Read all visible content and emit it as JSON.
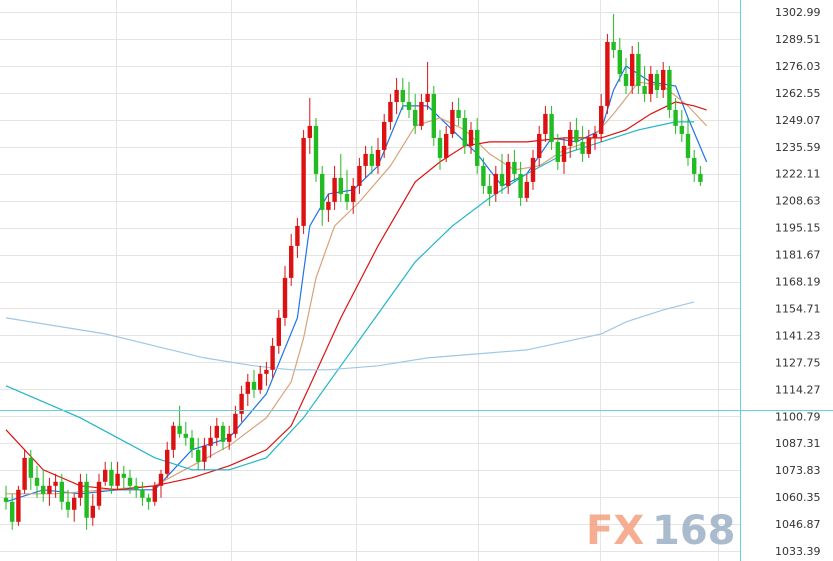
{
  "chart_data": {
    "type": "candlestick",
    "grid": true,
    "y_axis_position": "right",
    "ylim": [
      1033.39,
      1302.99
    ],
    "y_ticks": [
      "1302.99",
      "1289.51",
      "1276.03",
      "1262.55",
      "1249.07",
      "1235.59",
      "1222.11",
      "1208.63",
      "1195.15",
      "1181.67",
      "1168.19",
      "1154.71",
      "1141.23",
      "1127.75",
      "1114.27",
      "1100.79",
      "1087.31",
      "1073.83",
      "1060.35",
      "1046.87",
      "1033.39"
    ],
    "highlighted_level": 1104.0,
    "up_color": "#dd1111",
    "down_color": "#22bb22",
    "candles": [
      [
        1060,
        1066,
        1054,
        1058
      ],
      [
        1058,
        1062,
        1044,
        1048
      ],
      [
        1048,
        1066,
        1046,
        1064
      ],
      [
        1064,
        1084,
        1062,
        1080
      ],
      [
        1080,
        1084,
        1064,
        1070
      ],
      [
        1070,
        1076,
        1060,
        1066
      ],
      [
        1066,
        1074,
        1058,
        1062
      ],
      [
        1062,
        1070,
        1056,
        1066
      ],
      [
        1066,
        1072,
        1060,
        1068
      ],
      [
        1068,
        1072,
        1054,
        1058
      ],
      [
        1058,
        1064,
        1050,
        1054
      ],
      [
        1054,
        1062,
        1048,
        1060
      ],
      [
        1060,
        1072,
        1056,
        1068
      ],
      [
        1068,
        1072,
        1044,
        1050
      ],
      [
        1050,
        1062,
        1046,
        1056
      ],
      [
        1056,
        1072,
        1054,
        1068
      ],
      [
        1068,
        1078,
        1066,
        1074
      ],
      [
        1074,
        1078,
        1062,
        1066
      ],
      [
        1066,
        1078,
        1064,
        1072
      ],
      [
        1072,
        1076,
        1064,
        1070
      ],
      [
        1070,
        1074,
        1062,
        1066
      ],
      [
        1066,
        1070,
        1060,
        1064
      ],
      [
        1064,
        1068,
        1056,
        1060
      ],
      [
        1060,
        1062,
        1054,
        1058
      ],
      [
        1058,
        1068,
        1056,
        1066
      ],
      [
        1066,
        1074,
        1060,
        1072
      ],
      [
        1072,
        1088,
        1070,
        1084
      ],
      [
        1084,
        1098,
        1080,
        1096
      ],
      [
        1096,
        1106,
        1090,
        1092
      ],
      [
        1092,
        1098,
        1086,
        1090
      ],
      [
        1090,
        1094,
        1080,
        1084
      ],
      [
        1084,
        1090,
        1074,
        1078
      ],
      [
        1078,
        1090,
        1074,
        1086
      ],
      [
        1086,
        1096,
        1080,
        1090
      ],
      [
        1090,
        1100,
        1086,
        1096
      ],
      [
        1096,
        1098,
        1084,
        1088
      ],
      [
        1088,
        1096,
        1084,
        1092
      ],
      [
        1092,
        1106,
        1090,
        1102
      ],
      [
        1102,
        1116,
        1098,
        1112
      ],
      [
        1112,
        1122,
        1106,
        1118
      ],
      [
        1118,
        1124,
        1110,
        1114
      ],
      [
        1114,
        1126,
        1112,
        1122
      ],
      [
        1122,
        1128,
        1116,
        1124
      ],
      [
        1124,
        1140,
        1120,
        1136
      ],
      [
        1136,
        1154,
        1132,
        1150
      ],
      [
        1150,
        1176,
        1146,
        1170
      ],
      [
        1170,
        1192,
        1166,
        1186
      ],
      [
        1186,
        1200,
        1180,
        1196
      ],
      [
        1196,
        1244,
        1192,
        1240
      ],
      [
        1240,
        1260,
        1232,
        1246
      ],
      [
        1246,
        1250,
        1218,
        1222
      ],
      [
        1222,
        1226,
        1196,
        1204
      ],
      [
        1204,
        1212,
        1198,
        1208
      ],
      [
        1208,
        1226,
        1204,
        1220
      ],
      [
        1220,
        1232,
        1208,
        1212
      ],
      [
        1212,
        1224,
        1204,
        1208
      ],
      [
        1208,
        1220,
        1202,
        1216
      ],
      [
        1216,
        1230,
        1212,
        1226
      ],
      [
        1226,
        1236,
        1220,
        1232
      ],
      [
        1232,
        1236,
        1222,
        1226
      ],
      [
        1226,
        1240,
        1222,
        1234
      ],
      [
        1234,
        1252,
        1230,
        1248
      ],
      [
        1248,
        1262,
        1244,
        1258
      ],
      [
        1258,
        1270,
        1252,
        1264
      ],
      [
        1264,
        1270,
        1254,
        1258
      ],
      [
        1258,
        1268,
        1250,
        1254
      ],
      [
        1254,
        1262,
        1242,
        1246
      ],
      [
        1246,
        1262,
        1244,
        1258
      ],
      [
        1258,
        1278,
        1254,
        1262
      ],
      [
        1262,
        1266,
        1236,
        1240
      ],
      [
        1240,
        1244,
        1224,
        1230
      ],
      [
        1230,
        1246,
        1228,
        1242
      ],
      [
        1242,
        1258,
        1240,
        1254
      ],
      [
        1254,
        1260,
        1246,
        1250
      ],
      [
        1250,
        1254,
        1232,
        1236
      ],
      [
        1236,
        1248,
        1232,
        1244
      ],
      [
        1244,
        1250,
        1222,
        1226
      ],
      [
        1226,
        1230,
        1212,
        1216
      ],
      [
        1216,
        1222,
        1206,
        1212
      ],
      [
        1212,
        1226,
        1208,
        1222
      ],
      [
        1222,
        1232,
        1212,
        1216
      ],
      [
        1216,
        1232,
        1212,
        1228
      ],
      [
        1228,
        1234,
        1218,
        1222
      ],
      [
        1222,
        1228,
        1206,
        1210
      ],
      [
        1210,
        1222,
        1208,
        1218
      ],
      [
        1218,
        1234,
        1214,
        1230
      ],
      [
        1230,
        1246,
        1226,
        1242
      ],
      [
        1242,
        1256,
        1238,
        1252
      ],
      [
        1252,
        1256,
        1234,
        1238
      ],
      [
        1238,
        1242,
        1224,
        1228
      ],
      [
        1228,
        1240,
        1222,
        1236
      ],
      [
        1236,
        1248,
        1230,
        1244
      ],
      [
        1244,
        1250,
        1234,
        1238
      ],
      [
        1238,
        1246,
        1228,
        1232
      ],
      [
        1232,
        1244,
        1230,
        1240
      ],
      [
        1240,
        1246,
        1234,
        1242
      ],
      [
        1242,
        1262,
        1238,
        1256
      ],
      [
        1256,
        1292,
        1252,
        1288
      ],
      [
        1288,
        1302,
        1280,
        1284
      ],
      [
        1284,
        1290,
        1268,
        1272
      ],
      [
        1272,
        1280,
        1262,
        1266
      ],
      [
        1266,
        1286,
        1262,
        1282
      ],
      [
        1282,
        1288,
        1262,
        1266
      ],
      [
        1266,
        1276,
        1258,
        1262
      ],
      [
        1262,
        1276,
        1258,
        1272
      ],
      [
        1272,
        1274,
        1260,
        1264
      ],
      [
        1264,
        1278,
        1260,
        1274
      ],
      [
        1274,
        1276,
        1250,
        1254
      ],
      [
        1254,
        1260,
        1242,
        1246
      ],
      [
        1246,
        1254,
        1238,
        1242
      ],
      [
        1242,
        1250,
        1226,
        1230
      ],
      [
        1230,
        1234,
        1218,
        1222
      ],
      [
        1222,
        1226,
        1216,
        1218
      ]
    ],
    "moving_averages": [
      {
        "color": "#1e73e8",
        "values": [
          [
            0,
            1058
          ],
          [
            6,
            1064
          ],
          [
            12,
            1062
          ],
          [
            18,
            1064
          ],
          [
            24,
            1064
          ],
          [
            30,
            1084
          ],
          [
            36,
            1090
          ],
          [
            42,
            1112
          ],
          [
            47,
            1150
          ],
          [
            49,
            1196
          ],
          [
            52,
            1212
          ],
          [
            56,
            1214
          ],
          [
            60,
            1226
          ],
          [
            64,
            1256
          ],
          [
            68,
            1256
          ],
          [
            72,
            1244
          ],
          [
            76,
            1232
          ],
          [
            80,
            1216
          ],
          [
            84,
            1222
          ],
          [
            88,
            1240
          ],
          [
            92,
            1238
          ],
          [
            96,
            1244
          ],
          [
            98,
            1264
          ],
          [
            100,
            1276
          ],
          [
            104,
            1268
          ],
          [
            108,
            1266
          ],
          [
            110,
            1250
          ],
          [
            113,
            1228
          ]
        ]
      },
      {
        "color": "#d8a27a",
        "values": [
          [
            0,
            1062
          ],
          [
            8,
            1062
          ],
          [
            16,
            1064
          ],
          [
            24,
            1066
          ],
          [
            30,
            1076
          ],
          [
            36,
            1086
          ],
          [
            42,
            1100
          ],
          [
            46,
            1118
          ],
          [
            48,
            1140
          ],
          [
            50,
            1170
          ],
          [
            53,
            1196
          ],
          [
            57,
            1208
          ],
          [
            62,
            1226
          ],
          [
            66,
            1246
          ],
          [
            70,
            1250
          ],
          [
            74,
            1244
          ],
          [
            78,
            1232
          ],
          [
            82,
            1224
          ],
          [
            86,
            1226
          ],
          [
            90,
            1234
          ],
          [
            94,
            1238
          ],
          [
            98,
            1252
          ],
          [
            102,
            1268
          ],
          [
            106,
            1266
          ],
          [
            110,
            1256
          ],
          [
            113,
            1246
          ]
        ]
      },
      {
        "color": "#dd1111",
        "values": [
          [
            0,
            1094
          ],
          [
            6,
            1074
          ],
          [
            12,
            1066
          ],
          [
            18,
            1064
          ],
          [
            24,
            1066
          ],
          [
            30,
            1070
          ],
          [
            36,
            1076
          ],
          [
            42,
            1084
          ],
          [
            46,
            1096
          ],
          [
            49,
            1116
          ],
          [
            54,
            1150
          ],
          [
            60,
            1186
          ],
          [
            66,
            1218
          ],
          [
            70,
            1228
          ],
          [
            74,
            1236
          ],
          [
            78,
            1238
          ],
          [
            84,
            1238
          ],
          [
            90,
            1240
          ],
          [
            96,
            1240
          ],
          [
            100,
            1244
          ],
          [
            104,
            1252
          ],
          [
            108,
            1258
          ],
          [
            111,
            1256
          ],
          [
            113,
            1254
          ]
        ]
      },
      {
        "color": "#22b5c8",
        "values": [
          [
            0,
            1116
          ],
          [
            6,
            1108
          ],
          [
            12,
            1100
          ],
          [
            18,
            1090
          ],
          [
            24,
            1080
          ],
          [
            30,
            1074
          ],
          [
            36,
            1074
          ],
          [
            42,
            1080
          ],
          [
            48,
            1100
          ],
          [
            54,
            1126
          ],
          [
            60,
            1152
          ],
          [
            66,
            1178
          ],
          [
            72,
            1196
          ],
          [
            78,
            1210
          ],
          [
            84,
            1222
          ],
          [
            90,
            1232
          ],
          [
            96,
            1238
          ],
          [
            102,
            1244
          ],
          [
            108,
            1248
          ],
          [
            111,
            1248
          ]
        ]
      },
      {
        "color": "#9ec8e6",
        "values": [
          [
            0,
            1150
          ],
          [
            8,
            1146
          ],
          [
            16,
            1142
          ],
          [
            24,
            1136
          ],
          [
            32,
            1130
          ],
          [
            40,
            1126
          ],
          [
            46,
            1124
          ],
          [
            52,
            1124
          ],
          [
            60,
            1126
          ],
          [
            68,
            1130
          ],
          [
            76,
            1132
          ],
          [
            84,
            1134
          ],
          [
            90,
            1138
          ],
          [
            96,
            1142
          ],
          [
            100,
            1148
          ],
          [
            106,
            1154
          ],
          [
            111,
            1158
          ]
        ]
      }
    ]
  },
  "watermark": {
    "left": "FX",
    "right": "168",
    "left_color": "#f4a07e",
    "right_color": "#9bb0c4"
  }
}
